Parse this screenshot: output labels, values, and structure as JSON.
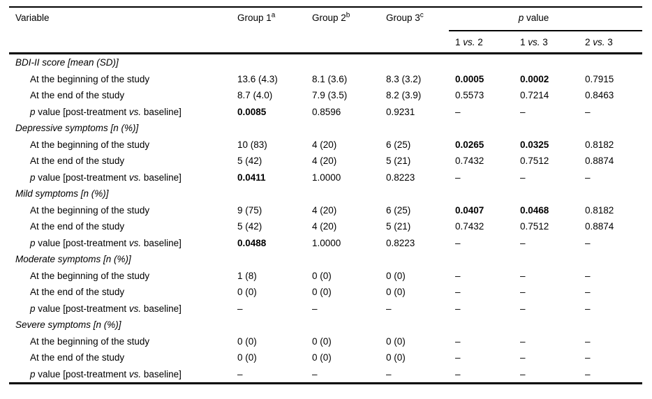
{
  "table": {
    "header": {
      "variable": "Variable",
      "groups": [
        {
          "label": "Group 1",
          "sup": "a"
        },
        {
          "label": "Group 2",
          "sup": "b"
        },
        {
          "label": "Group 3",
          "sup": "c"
        }
      ],
      "p_value": "p value",
      "comparisons": [
        "1 vs. 2",
        "1 vs. 3",
        "2 vs. 3"
      ]
    },
    "sections": [
      {
        "header": "BDI-II score [mean (SD)]",
        "rows": [
          {
            "label": "At the beginning of the study",
            "values": [
              "13.6 (4.3)",
              "8.1 (3.6)",
              "8.3 (3.2)",
              "0.0005",
              "0.0002",
              "0.7915"
            ],
            "bold": [
              3,
              4
            ]
          },
          {
            "label": "At the end of the study",
            "values": [
              "8.7 (4.0)",
              "7.9 (3.5)",
              "8.2 (3.9)",
              "0.5573",
              "0.7214",
              "0.8463"
            ],
            "bold": []
          },
          {
            "label": "p value [post-treatment vs. baseline]",
            "values": [
              "0.0085",
              "0.8596",
              "0.9231",
              "–",
              "–",
              "–"
            ],
            "bold": [
              0
            ]
          }
        ]
      },
      {
        "header": "Depressive symptoms [n (%)]",
        "rows": [
          {
            "label": "At the beginning of the study",
            "values": [
              "10 (83)",
              "4 (20)",
              "6 (25)",
              "0.0265",
              "0.0325",
              "0.8182"
            ],
            "bold": [
              3,
              4
            ]
          },
          {
            "label": "At the end of the study",
            "values": [
              "5 (42)",
              "4 (20)",
              "5 (21)",
              "0.7432",
              "0.7512",
              "0.8874"
            ],
            "bold": []
          },
          {
            "label": "p value [post-treatment vs. baseline]",
            "values": [
              "0.0411",
              "1.0000",
              "0.8223",
              "–",
              "–",
              "–"
            ],
            "bold": [
              0
            ]
          }
        ]
      },
      {
        "header": "Mild symptoms [n (%)]",
        "rows": [
          {
            "label": "At the beginning of the study",
            "values": [
              "9 (75)",
              "4 (20)",
              "6 (25)",
              "0.0407",
              "0.0468",
              "0.8182"
            ],
            "bold": [
              3,
              4
            ]
          },
          {
            "label": "At the end of the study",
            "values": [
              "5 (42)",
              "4 (20)",
              "5 (21)",
              "0.7432",
              "0.7512",
              "0.8874"
            ],
            "bold": []
          },
          {
            "label": "p value [post-treatment vs. baseline]",
            "values": [
              "0.0488",
              "1.0000",
              "0.8223",
              "–",
              "–",
              "–"
            ],
            "bold": [
              0
            ]
          }
        ]
      },
      {
        "header": "Moderate symptoms [n (%)]",
        "rows": [
          {
            "label": "At the beginning of the study",
            "values": [
              "1 (8)",
              "0 (0)",
              "0 (0)",
              "–",
              "–",
              "–"
            ],
            "bold": []
          },
          {
            "label": "At the end of the study",
            "values": [
              "0 (0)",
              "0 (0)",
              "0 (0)",
              "–",
              "–",
              "–"
            ],
            "bold": []
          },
          {
            "label": "p value [post-treatment vs. baseline]",
            "values": [
              "–",
              "–",
              "–",
              "–",
              "–",
              "–"
            ],
            "bold": []
          }
        ]
      },
      {
        "header": "Severe symptoms [n (%)]",
        "rows": [
          {
            "label": "At the beginning of the study",
            "values": [
              "0 (0)",
              "0 (0)",
              "0 (0)",
              "–",
              "–",
              "–"
            ],
            "bold": []
          },
          {
            "label": "At the end of the study",
            "values": [
              "0 (0)",
              "0 (0)",
              "0 (0)",
              "–",
              "–",
              "–"
            ],
            "bold": []
          },
          {
            "label": "p value [post-treatment vs. baseline]",
            "values": [
              "–",
              "–",
              "–",
              "–",
              "–",
              "–"
            ],
            "bold": []
          }
        ]
      }
    ]
  },
  "colors": {
    "text": "#000000",
    "background": "#ffffff",
    "rule": "#000000"
  }
}
